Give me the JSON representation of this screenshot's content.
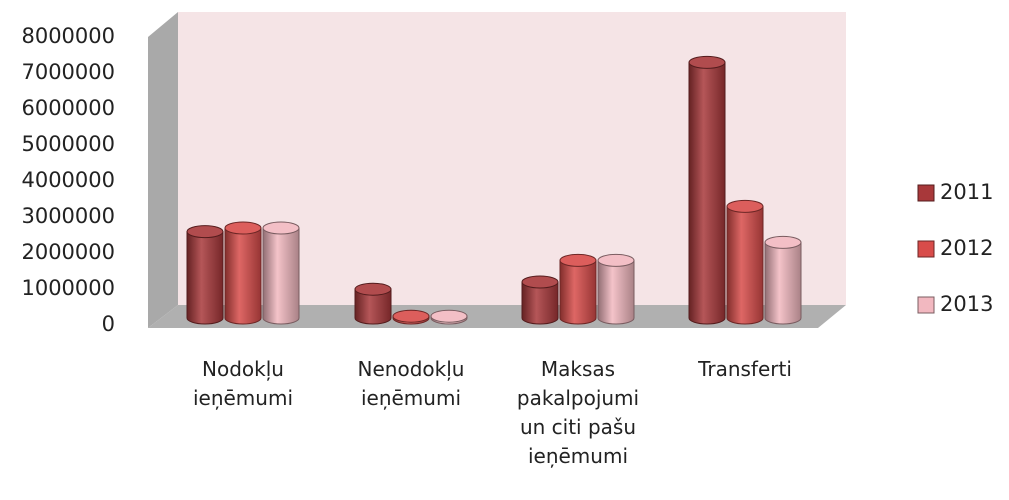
{
  "chart_data": {
    "type": "bar3d",
    "categories": [
      "Nodokļu ieņēmumi",
      "Nenodokļu ieņēmumi",
      "Maksas pakalpojumi un citi pašu ieņēmumi",
      "Transferti"
    ],
    "series": [
      {
        "name": "2011",
        "color": "#a8383a",
        "values": [
          2400000,
          800000,
          1000000,
          7100000
        ]
      },
      {
        "name": "2012",
        "color": "#d84c4a",
        "values": [
          2500000,
          50000,
          1600000,
          3100000
        ]
      },
      {
        "name": "2013",
        "color": "#f2b8c0",
        "values": [
          2500000,
          50000,
          1600000,
          2100000
        ]
      }
    ],
    "ylim": [
      0,
      8000000
    ],
    "yticks": [
      0,
      1000000,
      2000000,
      3000000,
      4000000,
      5000000,
      6000000,
      7000000,
      8000000
    ],
    "legend": "right"
  }
}
